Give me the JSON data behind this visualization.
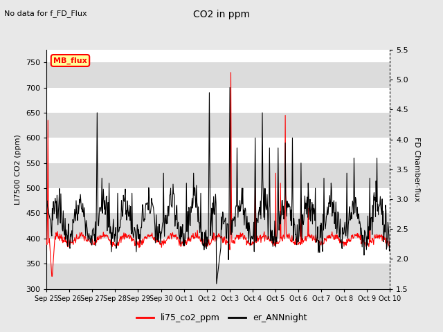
{
  "title": "CO2 in ppm",
  "top_left_text": "No data for f_FD_Flux",
  "left_ylabel": "LI7500 CO2 (ppm)",
  "right_ylabel": "FD Chamber-flux",
  "left_ylim": [
    300,
    775
  ],
  "right_ylim": [
    1.5,
    5.5
  ],
  "left_yticks": [
    300,
    350,
    400,
    450,
    500,
    550,
    600,
    650,
    700,
    750
  ],
  "right_yticks": [
    1.5,
    2.0,
    2.5,
    3.0,
    3.5,
    4.0,
    4.5,
    5.0,
    5.5
  ],
  "xtick_labels": [
    "Sep 25",
    "Sep 26",
    "Sep 27",
    "Sep 28",
    "Sep 29",
    "Sep 30",
    "Oct 1",
    "Oct 2",
    "Oct 3",
    "Oct 4",
    "Oct 5",
    "Oct 6",
    "Oct 7",
    "Oct 8",
    "Oct 9",
    "Oct 10"
  ],
  "legend_label_red": "li75_co2_ppm",
  "legend_label_black": "er_ANNnight",
  "legend_box_label": "MB_flux",
  "background_color": "#e8e8e8",
  "plot_bg_color": "#ffffff",
  "red_line_color": "#ff0000",
  "black_line_color": "#000000",
  "legend_box_color": "#ffff99",
  "legend_box_border": "#ff0000",
  "stripe_color": "#dcdcdc"
}
